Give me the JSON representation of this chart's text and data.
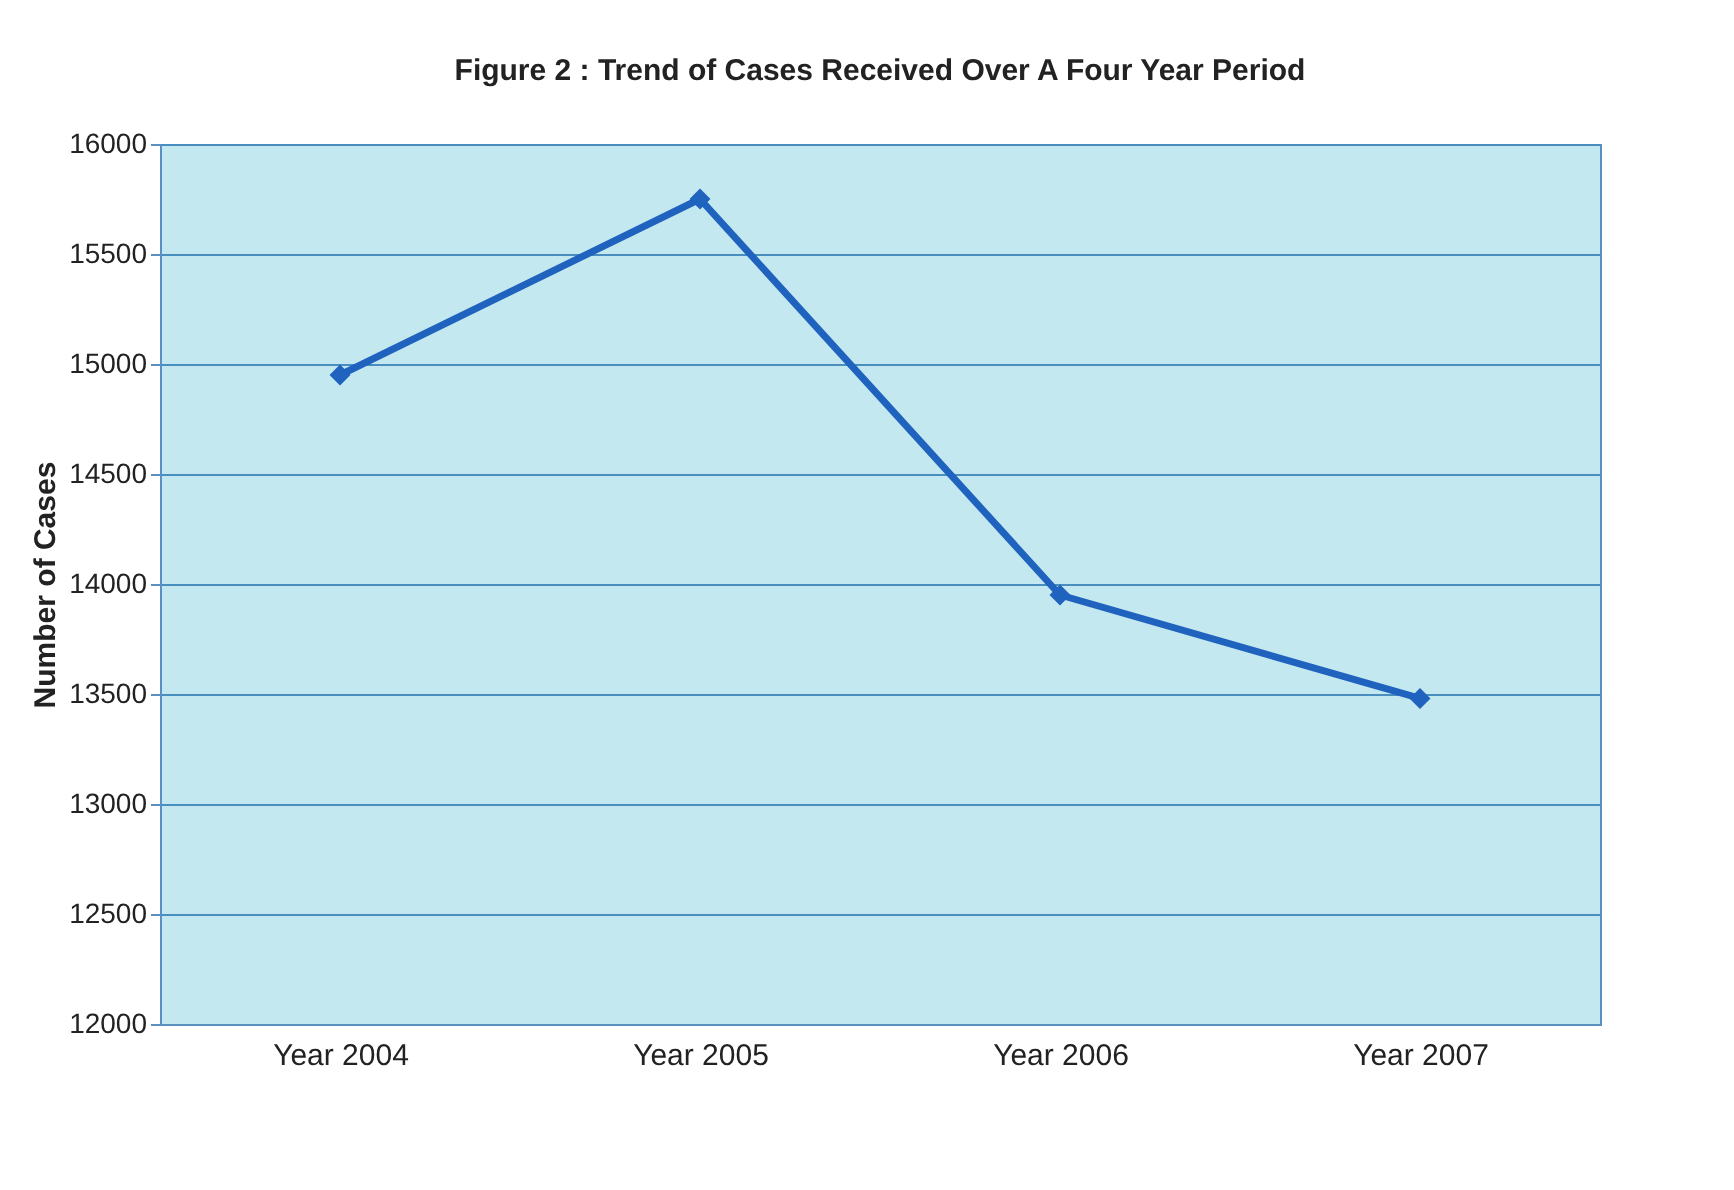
{
  "chart_data": {
    "type": "line",
    "title": "Figure 2 : Trend of Cases  Received Over A Four Year Period",
    "ylabel": "Number of Cases",
    "categories": [
      "Year 2004",
      "Year 2005",
      "Year 2006",
      "Year 2007"
    ],
    "series": [
      {
        "color": "#1f63bf",
        "values": [
          14950,
          15750,
          13950,
          13480
        ]
      }
    ],
    "ylim": [
      12000,
      16000
    ],
    "yticks": [
      12000,
      12500,
      13000,
      13500,
      14000,
      14500,
      15000,
      15500,
      16000
    ],
    "grid": "y",
    "marker": "diamond",
    "line_style": "solid"
  }
}
